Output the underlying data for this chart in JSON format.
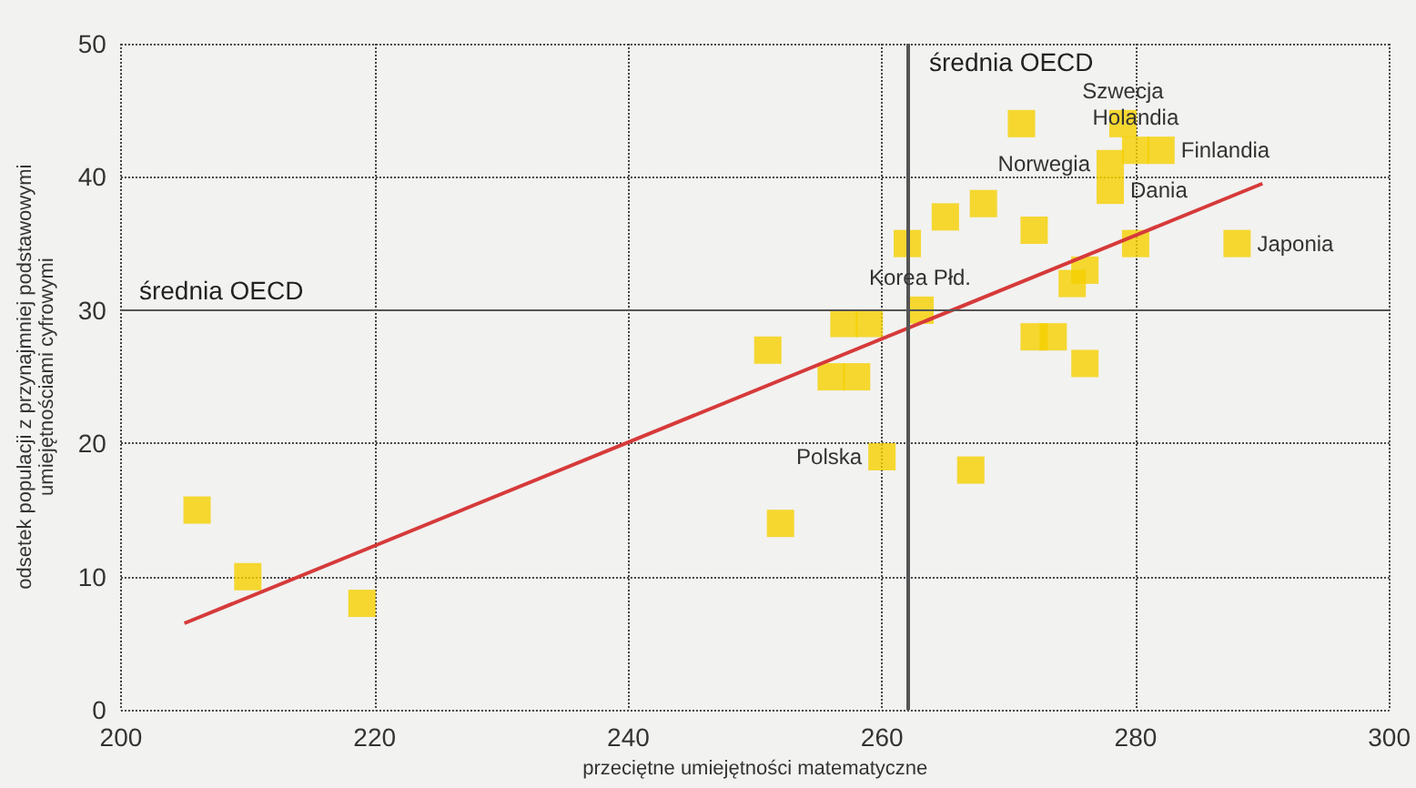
{
  "chart_data": {
    "type": "scatter",
    "xlabel": "przeciętne umiejętności matematyczne",
    "ylabel": "odsetek populacji z przynajmniej podstawowymi\numiejętnościami cyfrowymi",
    "xlim": [
      200,
      300
    ],
    "xticks": [
      200,
      220,
      240,
      260,
      280,
      300
    ],
    "ylim": [
      0,
      50
    ],
    "yticks": [
      0,
      10,
      20,
      30,
      40,
      50
    ],
    "grid": true,
    "marker": "square",
    "series": [
      {
        "color": "#f5cf00",
        "x": [
          206,
          210,
          219,
          251,
          252,
          256,
          258,
          257,
          259,
          260,
          262,
          263,
          265,
          267,
          268,
          271,
          272,
          272,
          273.5,
          275,
          276,
          276,
          278,
          278,
          279,
          280,
          282,
          280,
          288
        ],
        "values": [
          15,
          10,
          8,
          27,
          14,
          25,
          25,
          29,
          29,
          19,
          35,
          30,
          37,
          18,
          38,
          44,
          36,
          28,
          28,
          32,
          33,
          26,
          41,
          39,
          44,
          42,
          42,
          35,
          35
        ]
      },
      {
        "type": "line",
        "color": "#d63a3a",
        "x": [
          205,
          290
        ],
        "values": [
          6.5,
          39.5
        ],
        "marker": "none"
      }
    ],
    "ref_lines": [
      {
        "axis": "x",
        "value": 262,
        "label": "średnia OECD",
        "color": "#555555"
      },
      {
        "axis": "y",
        "value": 30,
        "label": "średnia OECD",
        "color": "#555555"
      }
    ],
    "annotations": [
      {
        "text": "Szwecja",
        "x": 279,
        "y": 44
      },
      {
        "text": "Norwegia",
        "x": 278,
        "y": 41
      },
      {
        "text": "Dania",
        "x": 278,
        "y": 39
      },
      {
        "text": "Finlandia",
        "x": 282,
        "y": 42
      },
      {
        "text": "Holandia",
        "x": 280,
        "y": 42
      },
      {
        "text": "Japonia",
        "x": 288,
        "y": 35
      },
      {
        "text": "Korea Płd.",
        "x": 263,
        "y": 30
      },
      {
        "text": "Polska",
        "x": 260,
        "y": 19
      }
    ]
  }
}
